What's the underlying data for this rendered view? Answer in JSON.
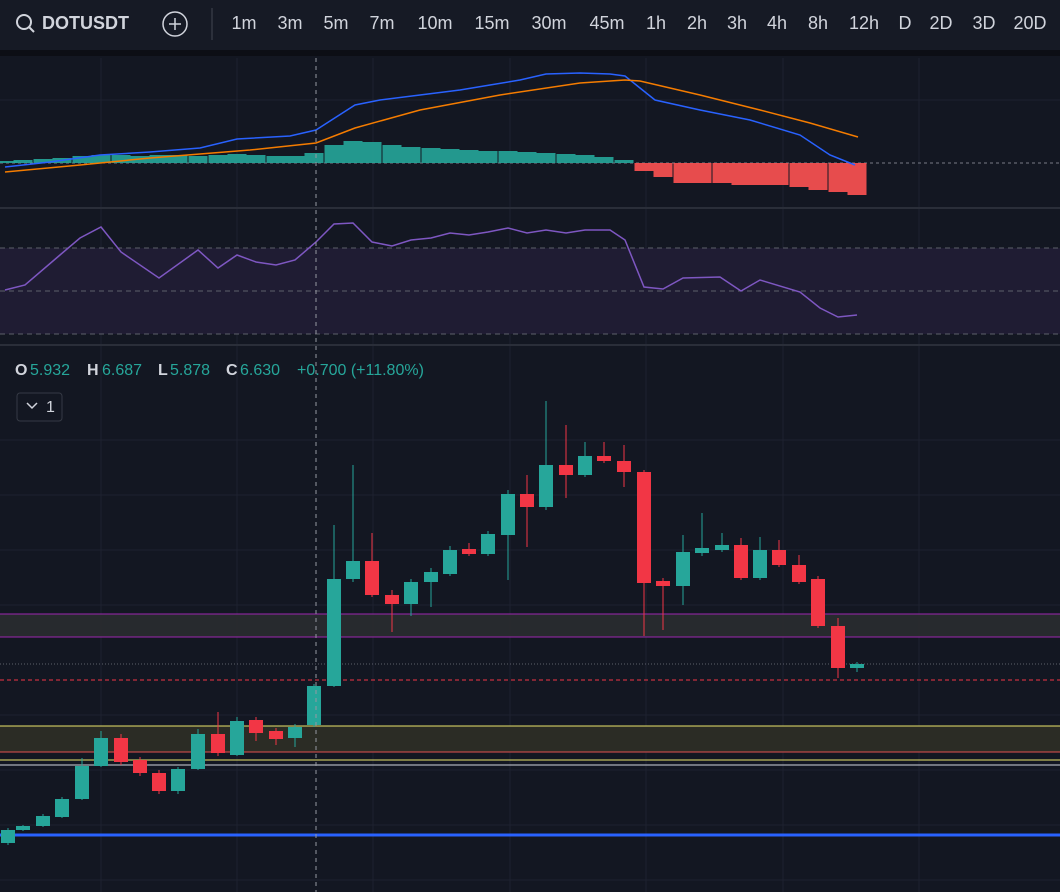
{
  "toolbar": {
    "symbol": "DOTUSDT",
    "intervals": [
      "1m",
      "3m",
      "5m",
      "7m",
      "10m",
      "15m",
      "30m",
      "45m",
      "1h",
      "2h",
      "3h",
      "4h",
      "8h",
      "12h",
      "D",
      "2D",
      "3D",
      "20D"
    ],
    "active_interval": "D"
  },
  "legend": {
    "open_label": "O",
    "open": "5.932",
    "high_label": "H",
    "high": "6.687",
    "low_label": "L",
    "low": "5.878",
    "close_label": "C",
    "close": "6.630",
    "change": "+0.700 (+11.80%)"
  },
  "pane_toggle": "1"
}
